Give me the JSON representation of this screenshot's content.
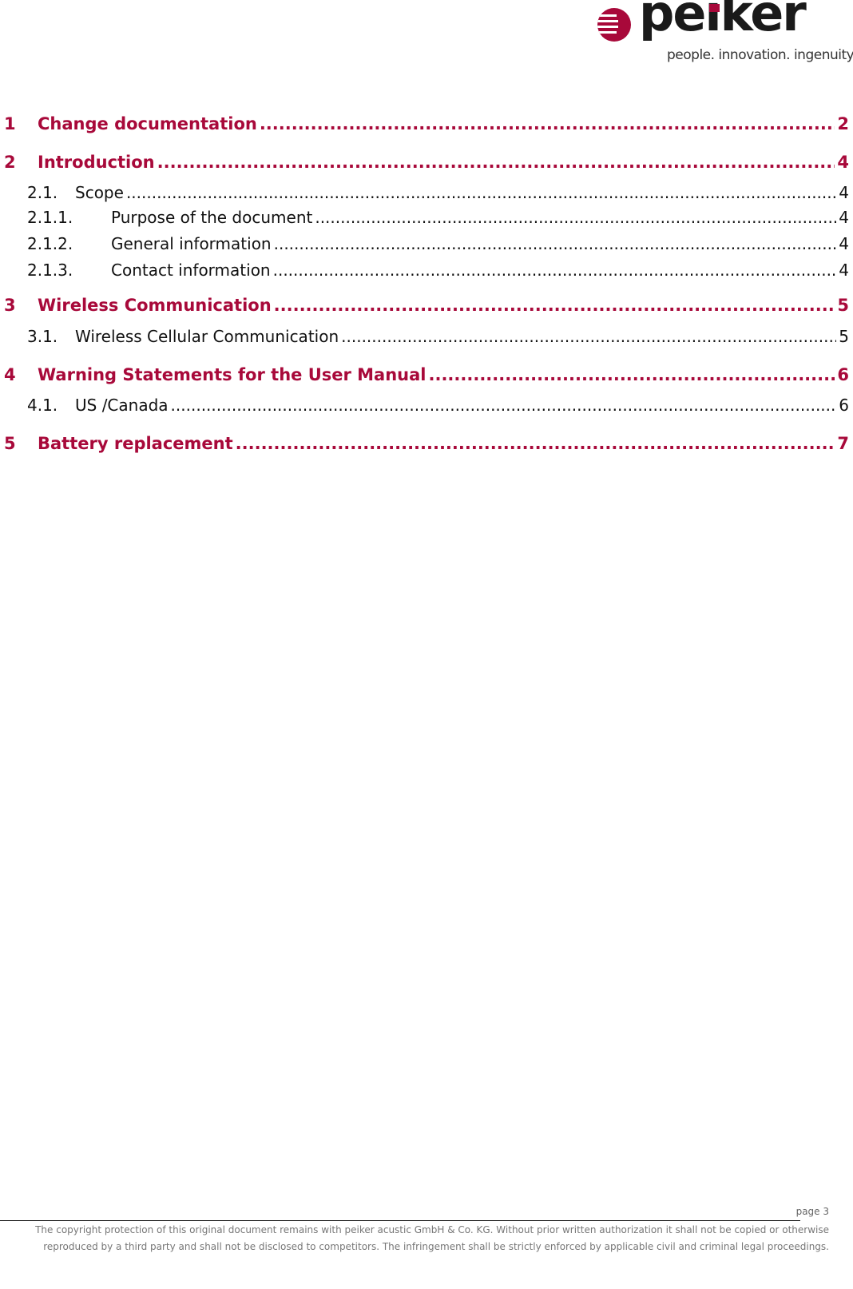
{
  "header": {
    "logo": {
      "brand": "peiker",
      "tagline": "people. innovation. ingenuity.",
      "color": "#a8093a"
    }
  },
  "toc": [
    {
      "level": 1,
      "number": "1",
      "title": "Change documentation",
      "page": "2"
    },
    {
      "level": 1,
      "number": "2",
      "title": "Introduction",
      "page": "4"
    },
    {
      "level": 2,
      "number": "2.1.",
      "title": "Scope",
      "page": "4"
    },
    {
      "level": 3,
      "number": "2.1.1.",
      "title": "Purpose of the document",
      "page": "4"
    },
    {
      "level": 3,
      "number": "2.1.2.",
      "title": "General information",
      "page": "4"
    },
    {
      "level": 3,
      "number": "2.1.3.",
      "title": "Contact information",
      "page": "4"
    },
    {
      "level": 1,
      "number": "3",
      "title": "Wireless Communication",
      "page": "5"
    },
    {
      "level": 2,
      "number": "3.1.",
      "title": "Wireless Cellular Communication",
      "page": "5"
    },
    {
      "level": 1,
      "number": "4",
      "title": "Warning Statements for the User Manual",
      "page": "6"
    },
    {
      "level": 2,
      "number": "4.1.",
      "title": "US /Canada",
      "page": "6"
    },
    {
      "level": 1,
      "number": "5",
      "title": "Battery replacement",
      "page": "7"
    }
  ],
  "footer": {
    "page_label": "page 3",
    "copyright_line1": "The copyright protection of this original document remains with peiker acustic GmbH & Co. KG. Without prior written authorization it shall not be copied or otherwise",
    "copyright_line2": "reproduced by a third party and shall not be disclosed to competitors. The infringement shall be strictly enforced by applicable civil and criminal legal proceedings."
  }
}
